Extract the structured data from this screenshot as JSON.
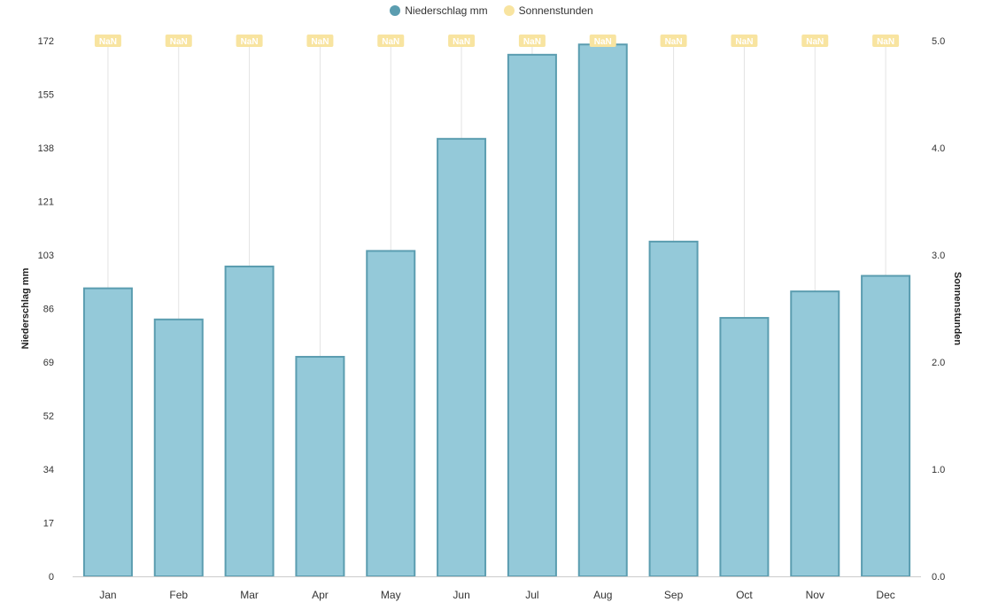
{
  "legend": {
    "items": [
      {
        "label": "Niederschlag mm",
        "color": "#5b9db0"
      },
      {
        "label": "Sonnenstunden",
        "color": "#f8e4a0"
      }
    ]
  },
  "chart_data": {
    "type": "bar",
    "categories": [
      "Jan",
      "Feb",
      "Mar",
      "Apr",
      "May",
      "Jun",
      "Jul",
      "Aug",
      "Sep",
      "Oct",
      "Nov",
      "Dec"
    ],
    "series": [
      {
        "name": "Niederschlag mm",
        "type": "bar",
        "axis": "left",
        "values": [
          92.5,
          82.5,
          99.5,
          70.5,
          104.5,
          140.5,
          167.5,
          170.8,
          107.5,
          83,
          91.5,
          96.5
        ],
        "fill_color": "#94c9d9",
        "stroke_color": "#5b9db0"
      },
      {
        "name": "Sonnenstunden",
        "type": "line",
        "axis": "right",
        "values": [
          null,
          null,
          null,
          null,
          null,
          null,
          null,
          null,
          null,
          null,
          null,
          null
        ],
        "data_labels": [
          "NaN",
          "NaN",
          "NaN",
          "NaN",
          "NaN",
          "NaN",
          "NaN",
          "NaN",
          "NaN",
          "NaN",
          "NaN",
          "NaN"
        ],
        "color": "#f8e4a0"
      }
    ],
    "y_left": {
      "label": "Niederschlag mm",
      "range": [
        0,
        172
      ],
      "ticks": [
        "0",
        "17",
        "34",
        "52",
        "69",
        "86",
        "103",
        "121",
        "138",
        "155",
        "172"
      ]
    },
    "y_right": {
      "label": "Sonnenstunden",
      "range": [
        0,
        5
      ],
      "ticks": [
        "0.0",
        "1.0",
        "2.0",
        "3.0",
        "4.0",
        "5.0"
      ]
    },
    "grid": {
      "vertical": true,
      "horizontal": false
    },
    "legend_position": "top-center"
  }
}
